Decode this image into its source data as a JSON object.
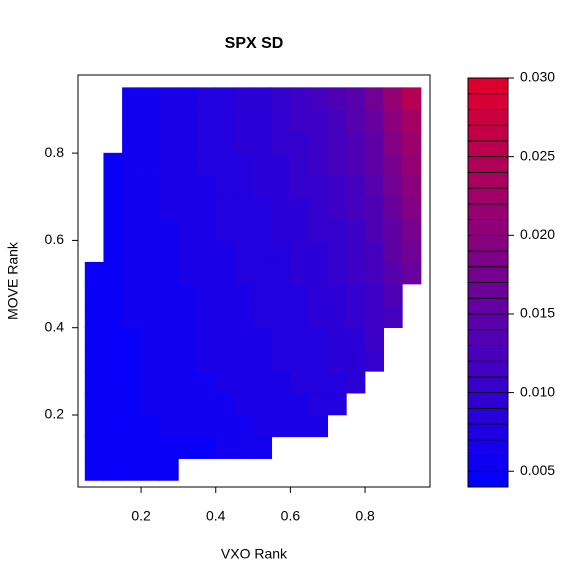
{
  "chart_data": {
    "type": "heatmap",
    "title": "SPX SD",
    "x_label": "VXO Rank",
    "y_label": "MOVE Rank",
    "xlim": [
      0.031,
      0.974
    ],
    "ylim": [
      0.035,
      0.979
    ],
    "xticks": [
      0.2,
      0.4,
      0.6,
      0.8
    ],
    "yticks": [
      0.2,
      0.4,
      0.6,
      0.8
    ],
    "zlim": [
      0.004,
      0.03
    ],
    "zticks": [
      0.005,
      {
        "value": 0.01,
        "label": "0.010"
      },
      0.015,
      {
        "value": 0.02,
        "label": "0.020"
      },
      0.025,
      {
        "value": 0.03,
        "label": "0.030"
      }
    ],
    "low_color": "#0000ff",
    "high_color": "#e1002a",
    "x": [
      0.075,
      0.125,
      0.175,
      0.225,
      0.275,
      0.325,
      0.375,
      0.425,
      0.475,
      0.525,
      0.575,
      0.625,
      0.675,
      0.725,
      0.775,
      0.825,
      0.875,
      0.925
    ],
    "y": [
      0.075,
      0.125,
      0.175,
      0.225,
      0.275,
      0.325,
      0.375,
      0.425,
      0.475,
      0.525,
      0.575,
      0.625,
      0.675,
      0.725,
      0.775,
      0.825,
      0.875,
      0.925
    ],
    "z": [
      [
        0.005,
        0.005,
        0.005,
        0.005,
        0.005,
        null,
        null,
        null,
        null,
        null,
        null,
        null,
        null,
        null,
        null,
        null,
        null,
        null
      ],
      [
        0.005,
        0.005,
        0.005,
        0.005,
        0.005,
        0.005,
        0.005,
        0.006,
        0.006,
        0.006,
        null,
        null,
        null,
        null,
        null,
        null,
        null,
        null
      ],
      [
        0.005,
        0.005,
        0.005,
        0.005,
        0.006,
        0.006,
        0.006,
        0.006,
        0.006,
        0.007,
        0.007,
        0.007,
        0.007,
        null,
        null,
        null,
        null,
        null
      ],
      [
        0.005,
        0.005,
        0.005,
        0.006,
        0.006,
        0.006,
        0.006,
        0.006,
        0.007,
        0.007,
        0.007,
        0.007,
        0.008,
        0.008,
        null,
        null,
        null,
        null
      ],
      [
        0.005,
        0.005,
        0.005,
        0.006,
        0.006,
        0.006,
        0.006,
        0.007,
        0.007,
        0.007,
        0.007,
        0.008,
        0.008,
        0.008,
        0.009,
        null,
        null,
        null
      ],
      [
        0.005,
        0.005,
        0.005,
        0.006,
        0.006,
        0.006,
        0.007,
        0.007,
        0.007,
        0.007,
        0.008,
        0.008,
        0.008,
        0.009,
        0.009,
        0.01,
        null,
        null
      ],
      [
        0.005,
        0.005,
        0.005,
        0.006,
        0.006,
        0.006,
        0.007,
        0.007,
        0.007,
        0.007,
        0.008,
        0.008,
        0.008,
        0.009,
        0.009,
        0.011,
        null,
        null
      ],
      [
        0.005,
        0.005,
        0.006,
        0.006,
        0.006,
        0.006,
        0.007,
        0.007,
        0.007,
        0.008,
        0.008,
        0.008,
        0.009,
        0.009,
        0.01,
        0.011,
        0.012,
        null
      ],
      [
        0.005,
        0.005,
        0.006,
        0.006,
        0.006,
        0.006,
        0.007,
        0.007,
        0.007,
        0.008,
        0.008,
        0.008,
        0.009,
        0.009,
        0.01,
        0.011,
        0.013,
        null
      ],
      [
        0.005,
        0.005,
        0.006,
        0.006,
        0.006,
        0.007,
        0.007,
        0.007,
        0.008,
        0.008,
        0.008,
        0.009,
        0.009,
        0.01,
        0.011,
        0.012,
        0.014,
        0.016
      ],
      [
        null,
        0.005,
        0.006,
        0.006,
        0.006,
        0.007,
        0.007,
        0.007,
        0.008,
        0.008,
        0.008,
        0.009,
        0.009,
        0.01,
        0.011,
        0.012,
        0.015,
        0.017
      ],
      [
        null,
        0.005,
        0.006,
        0.006,
        0.006,
        0.007,
        0.007,
        0.008,
        0.008,
        0.008,
        0.009,
        0.009,
        0.01,
        0.01,
        0.011,
        0.013,
        0.015,
        0.018
      ],
      [
        null,
        0.005,
        0.006,
        0.006,
        0.007,
        0.007,
        0.007,
        0.008,
        0.008,
        0.008,
        0.009,
        0.009,
        0.01,
        0.011,
        0.012,
        0.013,
        0.016,
        0.019
      ],
      [
        null,
        0.005,
        0.006,
        0.006,
        0.007,
        0.007,
        0.007,
        0.008,
        0.008,
        0.009,
        0.009,
        0.01,
        0.01,
        0.011,
        0.012,
        0.014,
        0.017,
        0.02
      ],
      [
        null,
        0.005,
        0.006,
        0.006,
        0.007,
        0.007,
        0.008,
        0.008,
        0.008,
        0.009,
        0.009,
        0.01,
        0.011,
        0.012,
        0.013,
        0.015,
        0.018,
        0.021
      ],
      [
        null,
        null,
        0.006,
        0.006,
        0.007,
        0.007,
        0.008,
        0.008,
        0.009,
        0.009,
        0.01,
        0.01,
        0.011,
        0.012,
        0.013,
        0.015,
        0.019,
        0.022
      ],
      [
        null,
        null,
        0.006,
        0.006,
        0.007,
        0.007,
        0.008,
        0.008,
        0.009,
        0.009,
        0.01,
        0.011,
        0.011,
        0.012,
        0.014,
        0.016,
        0.02,
        0.023
      ],
      [
        null,
        null,
        0.006,
        0.006,
        0.007,
        0.007,
        0.008,
        0.008,
        0.009,
        0.009,
        0.01,
        0.011,
        0.012,
        0.013,
        0.014,
        0.017,
        0.021,
        0.025
      ]
    ]
  }
}
